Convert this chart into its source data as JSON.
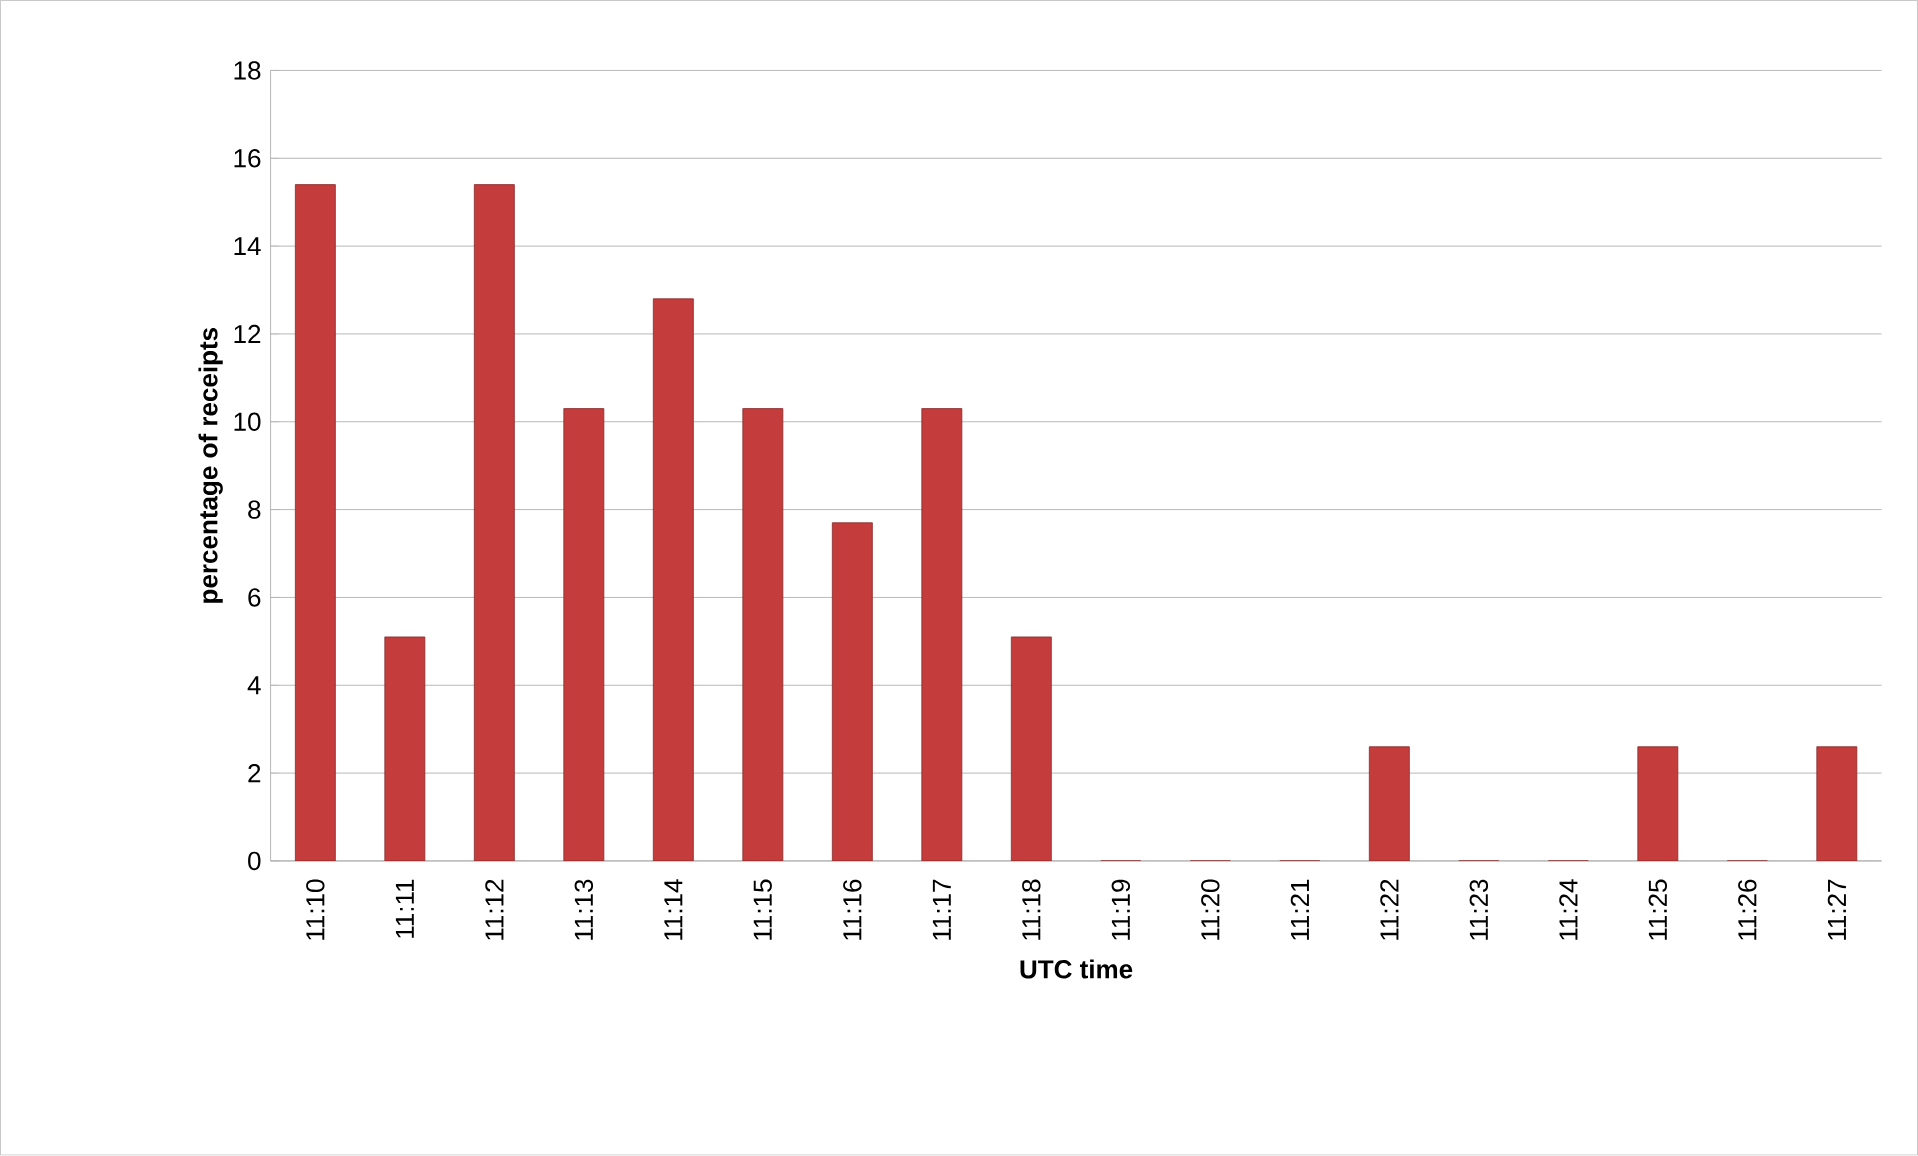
{
  "chart_data": {
    "type": "bar",
    "xlabel": "UTC time",
    "ylabel": "percentage of receipts",
    "categories": [
      "11:10",
      "11:11",
      "11:12",
      "11:13",
      "11:14",
      "11:15",
      "11:16",
      "11:17",
      "11:18",
      "11:19",
      "11:20",
      "11:21",
      "11:22",
      "11:23",
      "11:24",
      "11:25",
      "11:26",
      "11:27"
    ],
    "values": [
      15.4,
      5.1,
      15.4,
      10.3,
      12.8,
      10.3,
      7.7,
      10.3,
      5.1,
      0,
      0,
      0,
      2.6,
      0,
      0,
      2.6,
      0,
      2.6
    ],
    "color": "#c43c3c",
    "ylim": [
      0,
      18
    ],
    "yticks": [
      0,
      2,
      4,
      6,
      8,
      10,
      12,
      14,
      16,
      18
    ],
    "grid": "y"
  }
}
